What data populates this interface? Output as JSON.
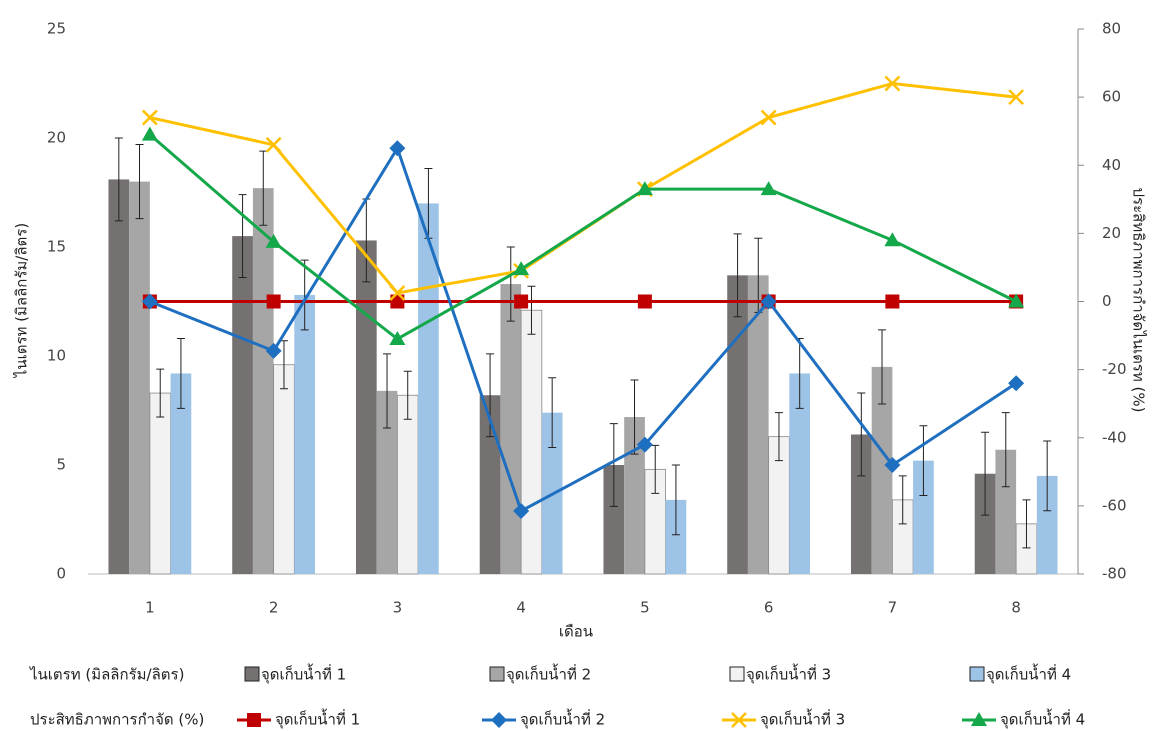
{
  "chart_data": {
    "type": "bar-line",
    "x_label": "เดือน",
    "y_label": "ไนเตรท (มิลลิกรัม/ลิตร)",
    "y2_label": "ประสิทธิภาพการกำจัดไนเตรท (%)",
    "categories": [
      "1",
      "2",
      "3",
      "4",
      "5",
      "6",
      "7",
      "8"
    ],
    "ylim": [
      0,
      25
    ],
    "yticks": [
      0,
      5,
      10,
      15,
      20,
      25
    ],
    "y2lim": [
      -80,
      80
    ],
    "y2ticks": [
      -80,
      -60,
      -40,
      -20,
      0,
      20,
      40,
      60,
      80
    ],
    "legend_groups": [
      "ไนเตรท (มิลลิกรัม/ลิตร)",
      "ประสิทธิภาพการกำจัด (%)"
    ],
    "series": [
      {
        "type": "bar",
        "name": "จุดเก็บน้ำที่ 1",
        "color": "#767171",
        "values": [
          18.1,
          15.5,
          15.3,
          8.2,
          5.0,
          13.7,
          6.4,
          4.6
        ],
        "errors": [
          1.9,
          1.9,
          1.9,
          1.9,
          1.9,
          1.9,
          1.9,
          1.9
        ]
      },
      {
        "type": "bar",
        "name": "จุดเก็บน้ำที่ 2",
        "color": "#a6a6a6",
        "values": [
          18.0,
          17.7,
          8.4,
          13.3,
          7.2,
          13.7,
          9.5,
          5.7
        ],
        "errors": [
          1.7,
          1.7,
          1.7,
          1.7,
          1.7,
          1.7,
          1.7,
          1.7
        ]
      },
      {
        "type": "bar",
        "name": "จุดเก็บน้ำที่ 3",
        "color": "#f2f2f2",
        "values": [
          8.3,
          9.6,
          8.2,
          12.1,
          4.8,
          6.3,
          3.4,
          2.3
        ],
        "errors": [
          1.1,
          1.1,
          1.1,
          1.1,
          1.1,
          1.1,
          1.1,
          1.1
        ]
      },
      {
        "type": "bar",
        "name": "จุดเก็บน้ำที่ 4",
        "color": "#9dc3e6",
        "values": [
          9.2,
          12.8,
          17.0,
          7.4,
          3.4,
          9.2,
          5.2,
          4.5
        ],
        "errors": [
          1.6,
          1.6,
          1.6,
          1.6,
          1.6,
          1.6,
          1.6,
          1.6
        ]
      },
      {
        "type": "line",
        "axis": "y2",
        "marker": "square",
        "name": "จุดเก็บน้ำที่ 1",
        "color": "#c00000",
        "values": [
          0,
          0,
          0,
          0,
          0,
          0,
          0,
          0
        ]
      },
      {
        "type": "line",
        "axis": "y2",
        "marker": "diamond",
        "name": "จุดเก็บน้ำที่ 2",
        "color": "#1f6fc0",
        "values": [
          0,
          -14.5,
          45,
          -61.5,
          -42,
          0,
          -48,
          -24
        ]
      },
      {
        "type": "line",
        "axis": "y2",
        "marker": "x",
        "name": "จุดเก็บน้ำที่ 3",
        "color": "#ffc000",
        "values": [
          54,
          46,
          2.5,
          9,
          33,
          54,
          64,
          60
        ]
      },
      {
        "type": "line",
        "axis": "y2",
        "marker": "triangle",
        "name": "จุดเก็บน้ำที่ 4",
        "color": "#14a84a",
        "values": [
          49,
          17.5,
          -11,
          9.5,
          33,
          33,
          18,
          0
        ]
      }
    ]
  }
}
